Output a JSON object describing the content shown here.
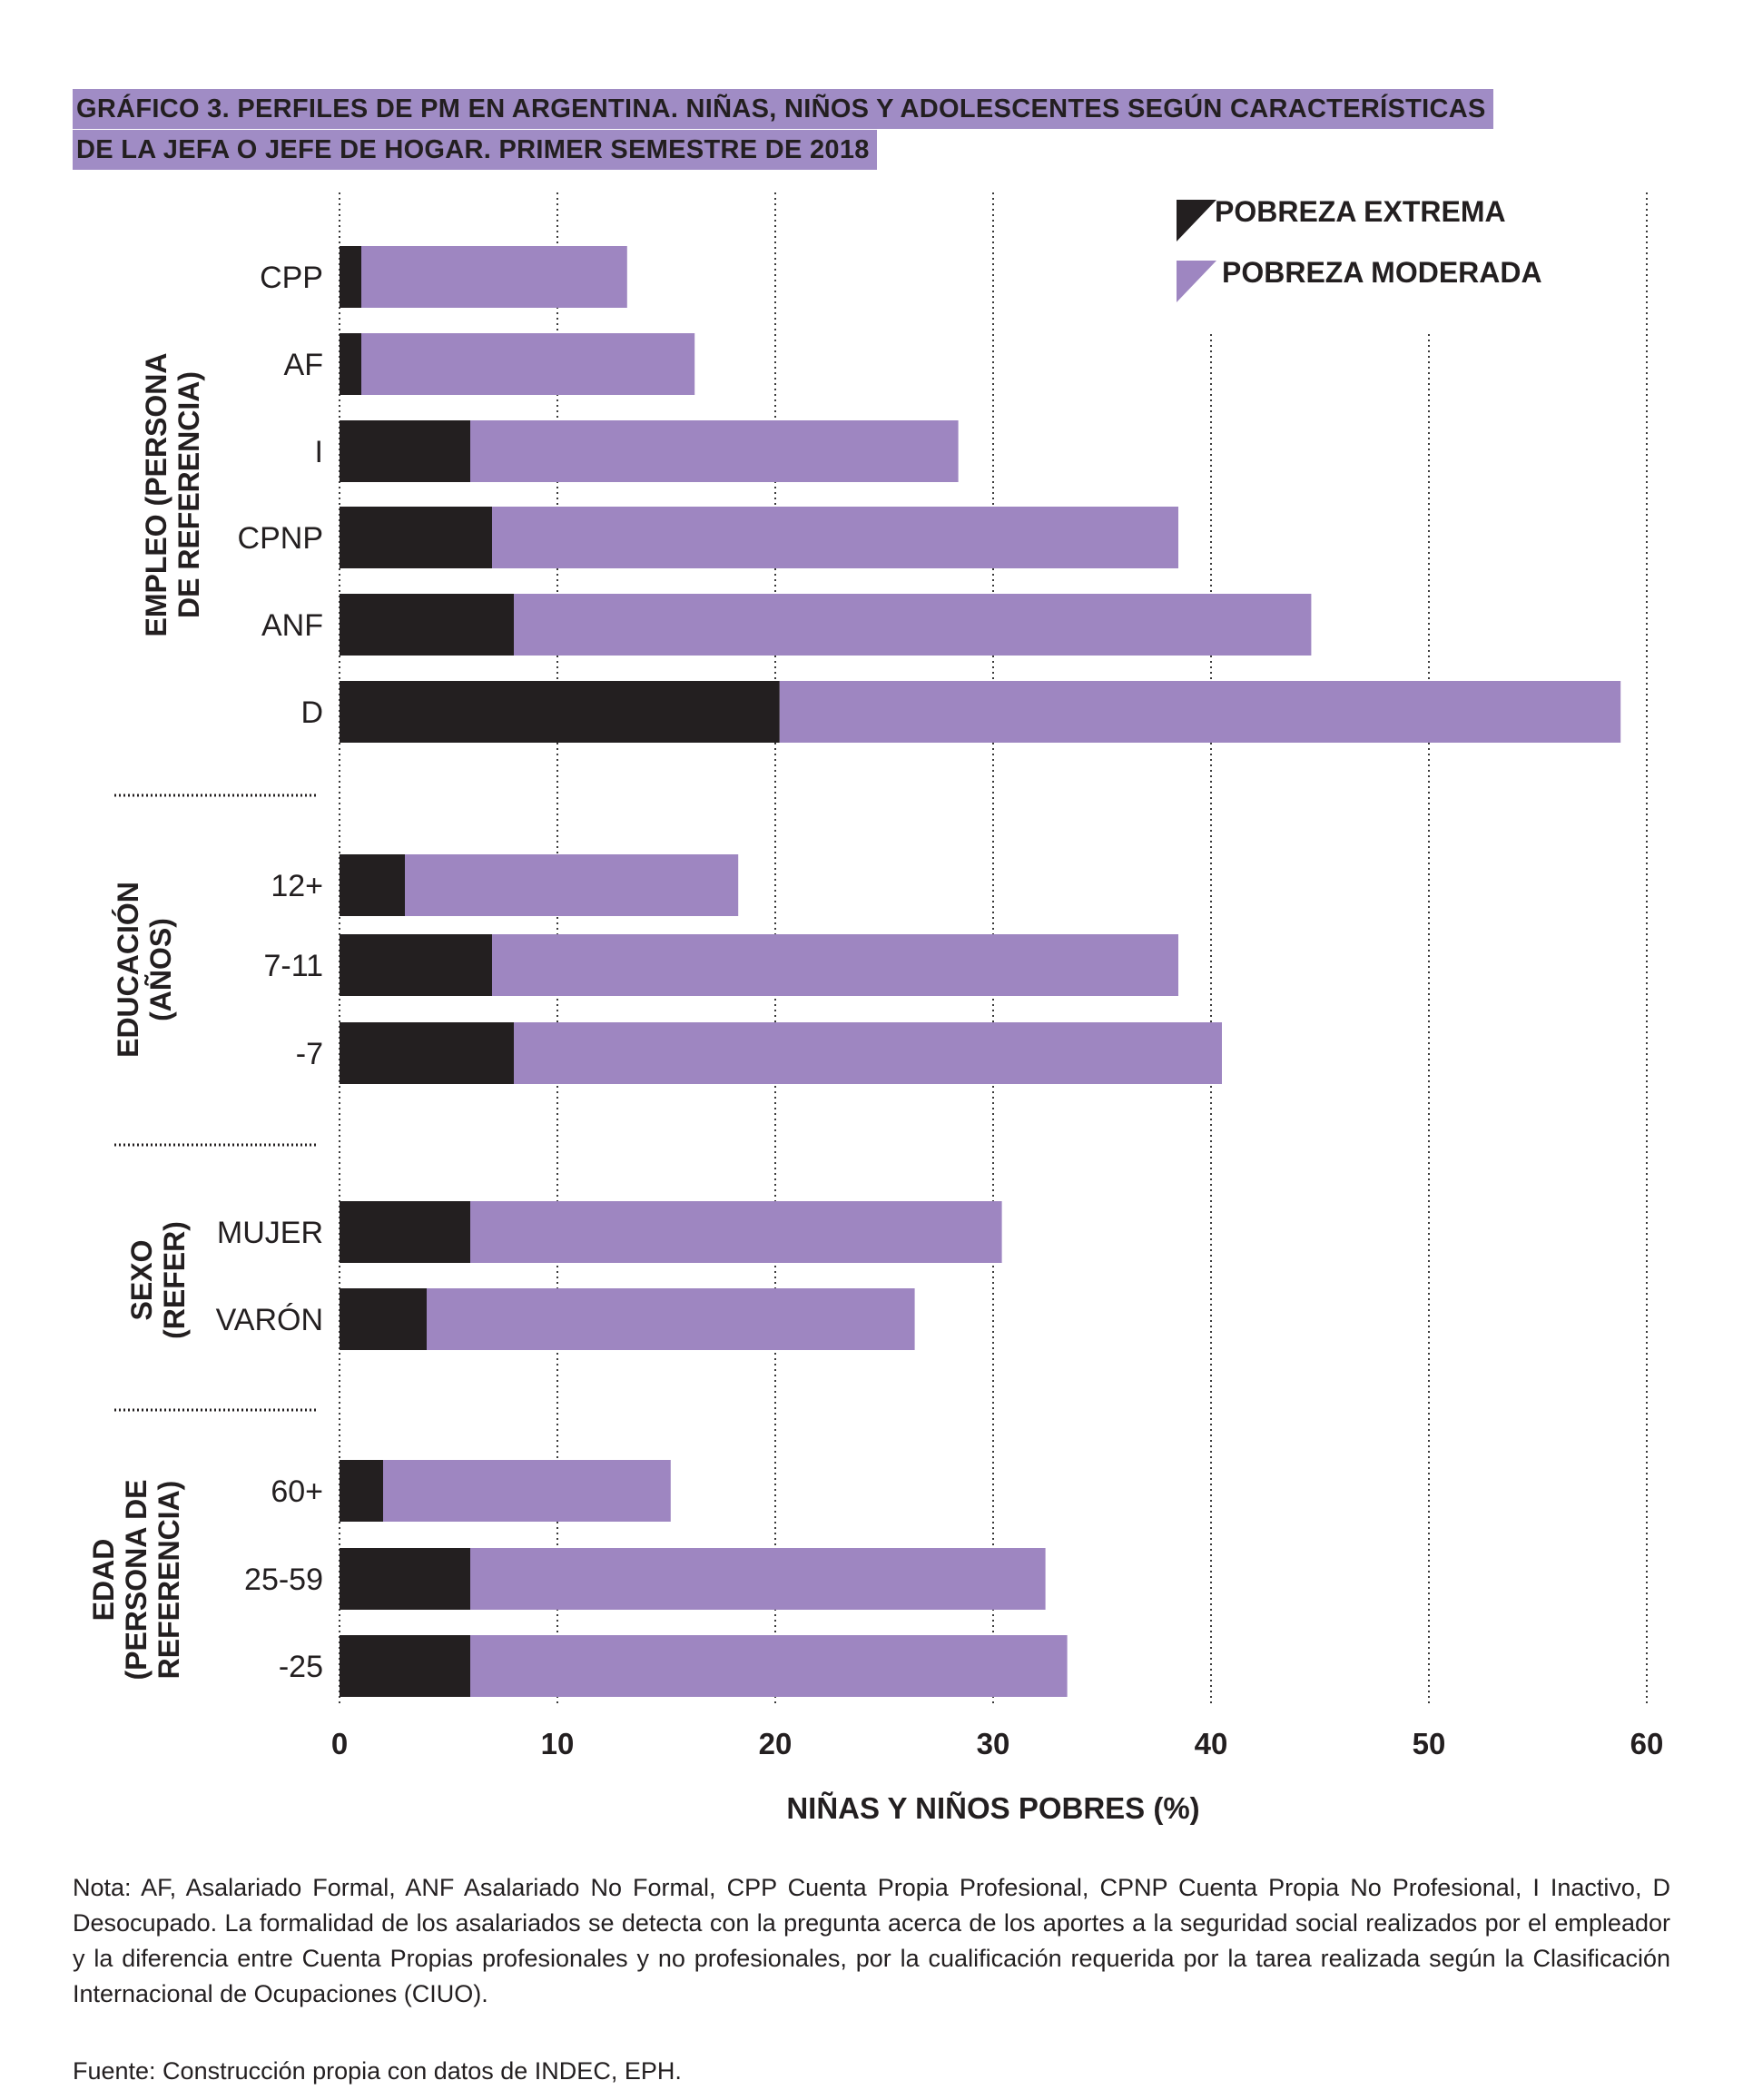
{
  "figure": {
    "title_line1": "GRÁFICO 3. PERFILES DE PM EN ARGENTINA. NIÑAS, NIÑOS Y ADOLESCENTES SEGÚN CARACTERÍSTICAS",
    "title_line2": "DE LA JEFA O JEFE DE HOGAR. PRIMER SEMESTRE DE 2018",
    "note": "Nota: AF, Asalariado Formal, ANF Asalariado No Formal, CPP Cuenta Propia Profesional, CPNP Cuenta Propia No Profesional, I Inactivo, D Desocupado. La formalidad de los asalariados se detecta con la pregunta acerca de los aportes a la seguridad social realizados por el empleador y la diferencia entre Cuenta Propias profesionales y no profesionales, por la cualificación requerida por la tarea realizada según la Clasificación Internacional de Ocupaciones (CIUO).",
    "source": "Fuente: Construcción propia con datos de INDEC, EPH."
  },
  "colors": {
    "extrema": "#231f20",
    "moderada": "#9e86c1",
    "title_bg": "#a08cc5"
  },
  "chart_data": {
    "type": "bar",
    "orientation": "horizontal",
    "stacked": true,
    "xlabel": "NIÑAS Y NIÑOS POBRES (%)",
    "xlim": [
      0,
      60
    ],
    "xticks": [
      0,
      10,
      20,
      30,
      40,
      50,
      60
    ],
    "grid": "vertical dotted",
    "legend_position": "top-right",
    "series": [
      {
        "name": "POBREZA EXTREMA",
        "color": "#231f20"
      },
      {
        "name": "POBREZA MODERADA",
        "color": "#9e86c1"
      }
    ],
    "groups": [
      {
        "label": "EMPLEO (PERSONA DE REFERENCIA)",
        "label_lines": [
          "EMPLEO (PERSONA",
          "DE REFERENCIA)"
        ],
        "categories": [
          {
            "label": "CPP",
            "extrema": 1,
            "moderada": 12.2
          },
          {
            "label": "AF",
            "extrema": 1,
            "moderada": 15.3
          },
          {
            "label": "I",
            "extrema": 6,
            "moderada": 22.4
          },
          {
            "label": "CPNP",
            "extrema": 7,
            "moderada": 31.5
          },
          {
            "label": "ANF",
            "extrema": 8,
            "moderada": 36.6
          },
          {
            "label": "D",
            "extrema": 20.2,
            "moderada": 38.6
          }
        ]
      },
      {
        "label": "EDUCACIÓN (AÑOS)",
        "label_lines": [
          "EDUCACIÓN",
          "(AÑOS)"
        ],
        "categories": [
          {
            "label": "12+",
            "extrema": 3,
            "moderada": 15.3
          },
          {
            "label": "7-11",
            "extrema": 7,
            "moderada": 31.5
          },
          {
            "label": "-7",
            "extrema": 8,
            "moderada": 32.5
          }
        ]
      },
      {
        "label": "SEXO (REFER)",
        "label_lines": [
          "SEXO",
          "(REFER)"
        ],
        "categories": [
          {
            "label": "MUJER",
            "extrema": 6,
            "moderada": 24.4
          },
          {
            "label": "VARÓN",
            "extrema": 4,
            "moderada": 22.4
          }
        ]
      },
      {
        "label": "EDAD (PERSONA DE REFERENCIA)",
        "label_lines": [
          "EDAD",
          "(PERSONA DE",
          "REFERENCIA)"
        ],
        "categories": [
          {
            "label": "60+",
            "extrema": 2,
            "moderada": 13.2
          },
          {
            "label": "25-59",
            "extrema": 6,
            "moderada": 26.4
          },
          {
            "label": "-25",
            "extrema": 6,
            "moderada": 27.4
          }
        ]
      }
    ]
  }
}
